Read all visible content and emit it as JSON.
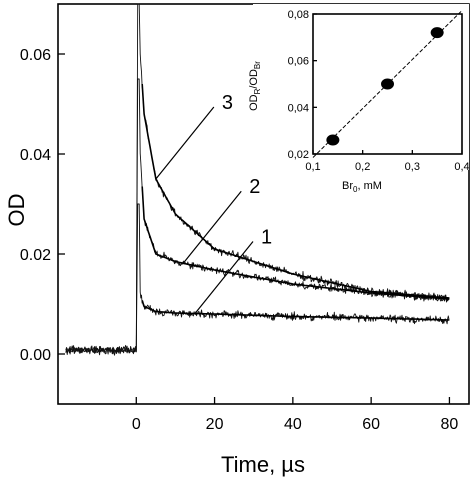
{
  "chart_data": [
    {
      "type": "line",
      "xlabel": "Time, µs",
      "ylabel": "OD",
      "xlim": [
        -20,
        85
      ],
      "ylim": [
        -0.01,
        0.07
      ],
      "x_ticks": [
        0,
        20,
        40,
        60,
        80
      ],
      "y_ticks": [
        0.0,
        0.02,
        0.04,
        0.06
      ],
      "x_tick_labels": [
        "0",
        "20",
        "40",
        "60",
        "80"
      ],
      "y_tick_labels": [
        "0.00",
        "0.02",
        "0.04",
        "0.06"
      ],
      "grid": false,
      "baseline_od": 0.0008,
      "pulse_time": 0,
      "series": [
        {
          "name": "1",
          "peak": 0.03,
          "fit_x": [
            1,
            2,
            5,
            10,
            20,
            40,
            60,
            80
          ],
          "fit_y": [
            0.012,
            0.0095,
            0.0085,
            0.0082,
            0.008,
            0.0075,
            0.0072,
            0.0068
          ]
        },
        {
          "name": "2",
          "peak": 0.055,
          "fit_x": [
            1,
            2,
            5,
            10,
            20,
            40,
            60,
            80
          ],
          "fit_y": [
            0.04,
            0.027,
            0.02,
            0.0185,
            0.0168,
            0.014,
            0.0122,
            0.011
          ]
        },
        {
          "name": "3",
          "peak": 0.07,
          "fit_x": [
            1,
            2,
            5,
            10,
            20,
            40,
            60,
            80
          ],
          "fit_y": [
            0.06,
            0.048,
            0.035,
            0.028,
            0.021,
            0.016,
            0.0125,
            0.0112
          ]
        }
      ]
    },
    {
      "type": "scatter",
      "xlabel": "Br",
      "xlabel_sub": "0",
      "xlabel_unit": ", mM",
      "ylabel": "OD",
      "ylabel_sub1": "R",
      "ylabel_mid": "/OD",
      "ylabel_sub2": "Br",
      "xlim": [
        0.1,
        0.4
      ],
      "ylim": [
        0.02,
        0.08
      ],
      "x_ticks": [
        0.1,
        0.2,
        0.3,
        0.4
      ],
      "y_ticks": [
        0.02,
        0.04,
        0.06,
        0.08
      ],
      "x_tick_labels": [
        "0,1",
        "0,2",
        "0,3",
        "0,4"
      ],
      "y_tick_labels": [
        "0,02",
        "0,04",
        "0,06",
        "0,08"
      ],
      "x": [
        0.14,
        0.25,
        0.35
      ],
      "y": [
        0.026,
        0.05,
        0.072
      ],
      "fit_line": {
        "x": [
          0.1,
          0.4
        ],
        "y": [
          0.0185,
          0.0815
        ]
      }
    }
  ]
}
